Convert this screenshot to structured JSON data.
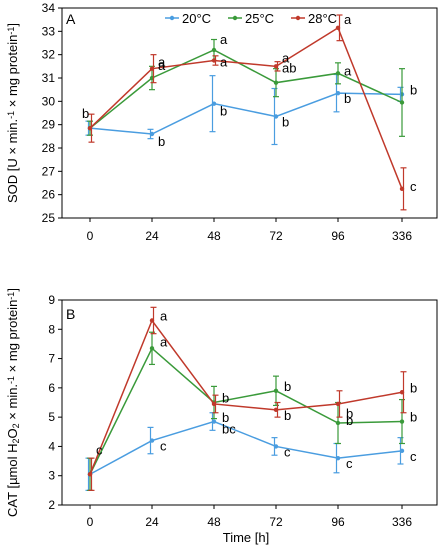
{
  "figure": {
    "xlabel": "Time [h]"
  },
  "colors": {
    "20": "#4a9de0",
    "25": "#3a9a3a",
    "28": "#c0392b"
  },
  "legend": {
    "labels": [
      "20°C",
      "25°C",
      "28°C"
    ]
  },
  "chart_data": [
    {
      "type": "line",
      "panel": "A",
      "categories": [
        "0",
        "24",
        "48",
        "72",
        "96",
        "336"
      ],
      "ylabel_main": "SOD [U × min.",
      "ylabel_sup1": "-1",
      "ylabel_mid": " × mg protein",
      "ylabel_sup2": "-1",
      "ylabel_end": "]",
      "ylim": [
        25,
        34
      ],
      "yticks": [
        25,
        26,
        27,
        28,
        29,
        30,
        31,
        32,
        33,
        34
      ],
      "series": [
        {
          "name": "20°C",
          "color": "#4a9de0",
          "values": [
            28.85,
            28.6,
            29.9,
            29.35,
            30.35,
            30.3
          ],
          "errors": [
            0.3,
            0.2,
            1.2,
            1.2,
            0.8,
            0.3
          ],
          "labels": [
            "b",
            "b",
            "b",
            "b",
            "b",
            "b"
          ]
        },
        {
          "name": "25°C",
          "color": "#3a9a3a",
          "values": [
            28.85,
            31.0,
            32.2,
            30.8,
            31.2,
            29.95
          ],
          "errors": [
            0.3,
            0.5,
            0.45,
            0.6,
            0.45,
            1.45
          ],
          "labels": [
            "",
            "a",
            "a",
            "ab",
            "a",
            ""
          ]
        },
        {
          "name": "28°C",
          "color": "#c0392b",
          "values": [
            28.85,
            31.4,
            31.75,
            31.5,
            33.15,
            26.25
          ],
          "errors": [
            0.6,
            0.6,
            0.2,
            0.2,
            0.55,
            0.9
          ],
          "labels": [
            "",
            "a",
            "a",
            "a",
            "a",
            "c"
          ]
        }
      ]
    },
    {
      "type": "line",
      "panel": "B",
      "categories": [
        "0",
        "24",
        "48",
        "72",
        "96",
        "336"
      ],
      "ylabel_main": "CAT [µmol H",
      "ylabel_sub1": "2",
      "ylabel_o": "O",
      "ylabel_sub2": "2",
      "ylabel_mid": " × min.",
      "ylabel_sup1": "-1",
      "ylabel_mid2": " × mg protein",
      "ylabel_sup2": "-1",
      "ylabel_end": "]",
      "ylim": [
        2,
        9
      ],
      "yticks": [
        2,
        3,
        4,
        5,
        6,
        7,
        8,
        9
      ],
      "series": [
        {
          "name": "20°C",
          "color": "#4a9de0",
          "values": [
            3.05,
            4.2,
            4.85,
            4.0,
            3.6,
            3.85
          ],
          "errors": [
            0.55,
            0.45,
            0.3,
            0.3,
            0.5,
            0.45
          ],
          "labels": [
            "c",
            "c",
            "bc",
            "c",
            "c",
            "c"
          ]
        },
        {
          "name": "25°C",
          "color": "#3a9a3a",
          "values": [
            3.05,
            7.35,
            5.5,
            5.9,
            4.8,
            4.85
          ],
          "errors": [
            0.55,
            0.55,
            0.55,
            0.5,
            0.7,
            0.75
          ],
          "labels": [
            "",
            "a",
            "b",
            "b",
            "b",
            "b"
          ]
        },
        {
          "name": "28°C",
          "color": "#c0392b",
          "values": [
            3.05,
            8.3,
            5.45,
            5.25,
            5.45,
            5.85
          ],
          "errors": [
            0.55,
            0.45,
            0.3,
            0.25,
            0.45,
            0.7
          ],
          "labels": [
            "",
            "a",
            "b",
            "b",
            "b",
            "b"
          ]
        }
      ]
    }
  ]
}
